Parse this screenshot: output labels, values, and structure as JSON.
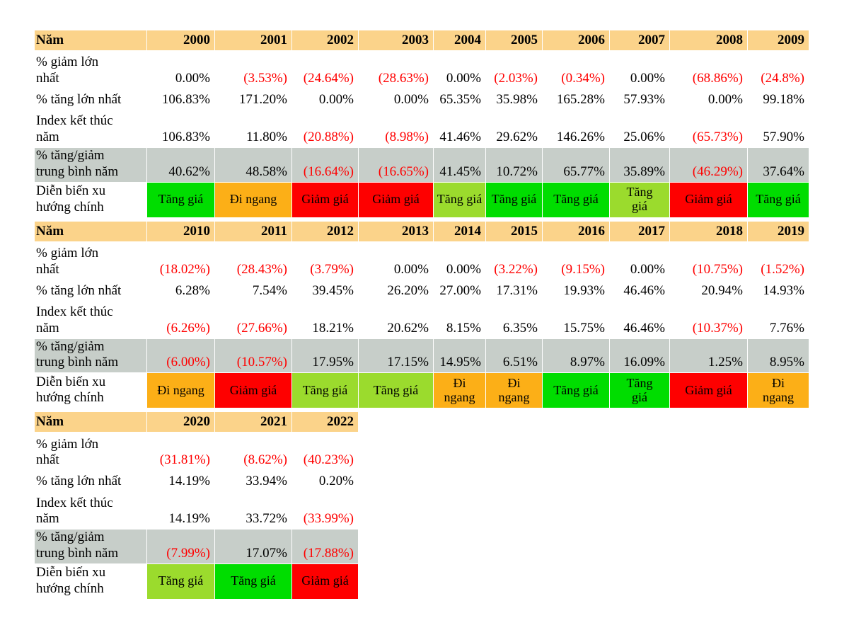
{
  "chart_data": {
    "type": "table",
    "row_labels": [
      "Năm",
      "% giảm lớn\nnhất",
      "% tăng lớn nhất",
      "Index kết thúc\nnăm",
      "% tăng/giảm\ntrung bình năm",
      "Diễn biến xu\nhướng chính"
    ],
    "blocks": [
      {
        "years": [
          "2000",
          "2001",
          "2002",
          "2003",
          "2004",
          "2005",
          "2006",
          "2007",
          "2008",
          "2009"
        ],
        "max_decline": [
          "0.00%",
          "(3.53%)",
          "(24.64%)",
          "(28.63%)",
          "0.00%",
          "(2.03%)",
          "(0.34%)",
          "0.00%",
          "(68.86%)",
          "(24.8%)"
        ],
        "max_gain": [
          "106.83%",
          "171.20%",
          "0.00%",
          "0.00%",
          "65.35%",
          "35.98%",
          "165.28%",
          "57.93%",
          "0.00%",
          "99.18%"
        ],
        "year_end_index": [
          "106.83%",
          "11.80%",
          "(20.88%)",
          "(8.98%)",
          "41.46%",
          "29.62%",
          "146.26%",
          "25.06%",
          "(65.73%)",
          "57.90%"
        ],
        "avg_annual_change": [
          "40.62%",
          "48.58%",
          "(16.64%)",
          "(16.65%)",
          "41.45%",
          "10.72%",
          "65.77%",
          "35.89%",
          "(46.29%)",
          "37.64%"
        ],
        "trend": [
          {
            "label": "Tăng giá",
            "style": "up_strong"
          },
          {
            "label": "Đi ngang",
            "style": "flat"
          },
          {
            "label": "Giảm giá",
            "style": "down"
          },
          {
            "label": "Giảm giá",
            "style": "down"
          },
          {
            "label": "Tăng giá",
            "style": "up"
          },
          {
            "label": "Tăng giá",
            "style": "up_strong"
          },
          {
            "label": "Tăng giá",
            "style": "up_strong"
          },
          {
            "label": "Tăng\ngiá",
            "style": "up"
          },
          {
            "label": "Giảm giá",
            "style": "down"
          },
          {
            "label": "Tăng giá",
            "style": "up_strong"
          }
        ]
      },
      {
        "years": [
          "2010",
          "2011",
          "2012",
          "2013",
          "2014",
          "2015",
          "2016",
          "2017",
          "2018",
          "2019"
        ],
        "max_decline": [
          "(18.02%)",
          "(28.43%)",
          "(3.79%)",
          "0.00%",
          "0.00%",
          "(3.22%)",
          "(9.15%)",
          "0.00%",
          "(10.75%)",
          "(1.52%)"
        ],
        "max_gain": [
          "6.28%",
          "7.54%",
          "39.45%",
          "26.20%",
          "27.00%",
          "17.31%",
          "19.93%",
          "46.46%",
          "20.94%",
          "14.93%"
        ],
        "year_end_index": [
          "(6.26%)",
          "(27.66%)",
          "18.21%",
          "20.62%",
          "8.15%",
          "6.35%",
          "15.75%",
          "46.46%",
          "(10.37%)",
          "7.76%"
        ],
        "avg_annual_change": [
          "(6.00%)",
          "(10.57%)",
          "17.95%",
          "17.15%",
          "14.95%",
          "6.51%",
          "8.97%",
          "16.09%",
          "1.25%",
          "8.95%"
        ],
        "trend": [
          {
            "label": "Đi ngang",
            "style": "flat"
          },
          {
            "label": "Giảm giá",
            "style": "down"
          },
          {
            "label": "Tăng giá",
            "style": "up"
          },
          {
            "label": "Tăng giá",
            "style": "up"
          },
          {
            "label": "Đi\nngang",
            "style": "flat"
          },
          {
            "label": "Đi\nngang",
            "style": "flat"
          },
          {
            "label": "Tăng giá",
            "style": "up_strong"
          },
          {
            "label": "Tăng\ngiá",
            "style": "up_strong"
          },
          {
            "label": "Giảm giá",
            "style": "down"
          },
          {
            "label": "Đi\nngang",
            "style": "flat"
          }
        ]
      },
      {
        "years": [
          "2020",
          "2021",
          "2022"
        ],
        "max_decline": [
          "(31.81%)",
          "(8.62%)",
          "(40.23%)"
        ],
        "max_gain": [
          "14.19%",
          "33.94%",
          "0.20%"
        ],
        "year_end_index": [
          "14.19%",
          "33.72%",
          "(33.99%)"
        ],
        "avg_annual_change": [
          "(7.99%)",
          "17.07%",
          "(17.88%)"
        ],
        "trend": [
          {
            "label": "Tăng giá",
            "style": "up"
          },
          {
            "label": "Tăng giá",
            "style": "up_strong"
          },
          {
            "label": "Giảm giá",
            "style": "down"
          }
        ]
      }
    ],
    "trend_legend": {
      "up_strong": "Tăng giá",
      "up": "Tăng giá",
      "flat": "Đi ngang",
      "down": "Giảm giá"
    },
    "colors": {
      "header_bg": "#FBD38A",
      "avg_row_bg": "#C7CEC9",
      "up_strong": "#00DD00",
      "up": "#9BDB2D",
      "flat": "#FCAF17",
      "down": "#FE0000",
      "negative_text": "#FF0000",
      "text": "#000000"
    },
    "layout": {
      "grid": false,
      "negative_format": "parentheses-red",
      "value_alignment": "right"
    }
  }
}
